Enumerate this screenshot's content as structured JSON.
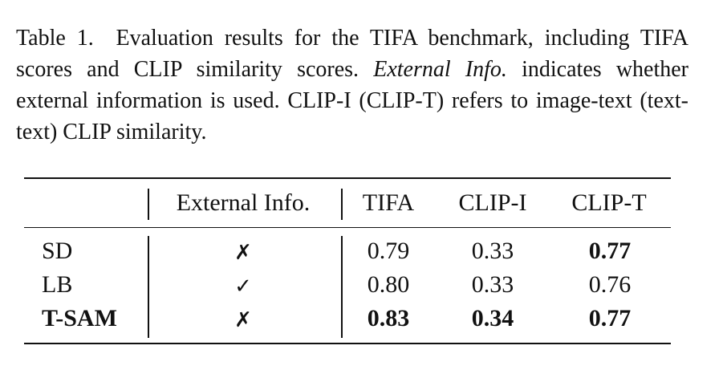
{
  "caption": {
    "label": "Table 1.",
    "text_1": "Evaluation results for the TIFA benchmark, including TIFA scores and CLIP similarity scores.",
    "text_italic": "External Info.",
    "text_2": "indicates whether external information is used. CLIP-I (CLIP-T) refers to image-text (text-text) CLIP similarity."
  },
  "table": {
    "header": [
      "External Info.",
      "TIFA",
      "CLIP-I",
      "CLIP-T"
    ],
    "rows": [
      [
        "SD",
        "✗",
        "0.79",
        "0.33",
        "0.77"
      ],
      [
        "LB",
        "✓",
        "0.80",
        "0.33",
        "0.76"
      ],
      [
        "T-SAM",
        "✗",
        "0.83",
        "0.34",
        "0.77"
      ]
    ]
  }
}
